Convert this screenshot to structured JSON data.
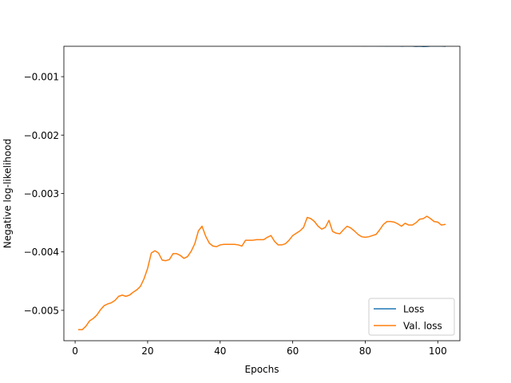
{
  "chart_data": {
    "type": "line",
    "title": "",
    "xlabel": "Epochs",
    "ylabel": "Negative log-likelihood",
    "xlim": [
      -3.1,
      106.1
    ],
    "ylim": [
      -0.00552,
      -0.00048
    ],
    "xticks": [
      0,
      20,
      40,
      60,
      80,
      100
    ],
    "yticks": [
      -0.005,
      -0.004,
      -0.003,
      -0.002,
      -0.001
    ],
    "ytick_labels": [
      "−0.005",
      "−0.004",
      "−0.003",
      "−0.002",
      "−0.001"
    ],
    "legend_position": "lower-right",
    "grid": false,
    "series": [
      {
        "name": "Loss",
        "color": "#1f77b4",
        "x": [
          1,
          2,
          3,
          4,
          5,
          6,
          7,
          8,
          9,
          10,
          11,
          12,
          13,
          14,
          15,
          16,
          17,
          18,
          19,
          20,
          21,
          22,
          23,
          24,
          25,
          26,
          27,
          28,
          29,
          30,
          31,
          32,
          33,
          34,
          35,
          36,
          37,
          38,
          39,
          40,
          41,
          42,
          43,
          44,
          45,
          46,
          47,
          48,
          49,
          50,
          51,
          52,
          53,
          54,
          55,
          56,
          57,
          58,
          59,
          60,
          61,
          62,
          63,
          64,
          65,
          66,
          67,
          68,
          69,
          70,
          71,
          72,
          73,
          74,
          75,
          76,
          77,
          78,
          79,
          80,
          81,
          82,
          83,
          84,
          85,
          86,
          87,
          88,
          89,
          90,
          91,
          92,
          93,
          94,
          95,
          96,
          97,
          98,
          99,
          100,
          101,
          102
        ],
        "y": [
          -0.0004,
          -0.000401,
          -0.000403,
          -0.000405,
          -0.000405,
          -0.000408,
          -0.000416,
          -0.00041,
          -0.000416,
          -0.00042,
          -0.000418,
          -0.000413,
          -0.000414,
          -0.000418,
          -0.000427,
          -0.000427,
          -0.000429,
          -0.000433,
          -0.000432,
          -0.000437,
          -0.000445,
          -0.000433,
          -0.000438,
          -0.000436,
          -0.000445,
          -0.00044,
          -0.000448,
          -0.000446,
          -0.000447,
          -0.000446,
          -0.000452,
          -0.000451,
          -0.000451,
          -0.000453,
          -0.000441,
          -0.000453,
          -0.000449,
          -0.000452,
          -0.000456,
          -0.000457,
          -0.000455,
          -0.000459,
          -0.000457,
          -0.000458,
          -0.000458,
          -0.000461,
          -0.000456,
          -0.000462,
          -0.000461,
          -0.000461,
          -0.000459,
          -0.000465,
          -0.000463,
          -0.000457,
          -0.000464,
          -0.000463,
          -0.000462,
          -0.000465,
          -0.000467,
          -0.000464,
          -0.000465,
          -0.000461,
          -0.000467,
          -0.000466,
          -0.000466,
          -0.000467,
          -0.000466,
          -0.000464,
          -0.000469,
          -0.000455,
          -0.000471,
          -0.000465,
          -0.000468,
          -0.000462,
          -0.000464,
          -0.000469,
          -0.000471,
          -0.000468,
          -0.000472,
          -0.000473,
          -0.000471,
          -0.000472,
          -0.000472,
          -0.000474,
          -0.000473,
          -0.000476,
          -0.000474,
          -0.000475,
          -0.000474,
          -0.000478,
          -0.000476,
          -0.000475,
          -0.000477,
          -0.000481,
          -0.000478,
          -0.000483,
          -0.000481,
          -0.000477,
          -0.000476,
          -0.000475,
          -0.000477,
          -0.000479
        ]
      },
      {
        "name": "Val. loss",
        "color": "#ff7f0e",
        "x": [
          1,
          2,
          3,
          4,
          5,
          6,
          7,
          8,
          9,
          10,
          11,
          12,
          13,
          14,
          15,
          16,
          17,
          18,
          19,
          20,
          21,
          22,
          23,
          24,
          25,
          26,
          27,
          28,
          29,
          30,
          31,
          32,
          33,
          34,
          35,
          36,
          37,
          38,
          39,
          40,
          41,
          42,
          43,
          44,
          45,
          46,
          47,
          48,
          49,
          50,
          51,
          52,
          53,
          54,
          55,
          56,
          57,
          58,
          59,
          60,
          61,
          62,
          63,
          64,
          65,
          66,
          67,
          68,
          69,
          70,
          71,
          72,
          73,
          74,
          75,
          76,
          77,
          78,
          79,
          80,
          81,
          82,
          83,
          84,
          85,
          86,
          87,
          88,
          89,
          90,
          91,
          92,
          93,
          94,
          95,
          96,
          97,
          98,
          99,
          100,
          101,
          102
        ],
        "y": [
          -0.00533,
          -0.00533,
          -0.00527,
          -0.00518,
          -0.00514,
          -0.00508,
          -0.00499,
          -0.00492,
          -0.00489,
          -0.00487,
          -0.00483,
          -0.00476,
          -0.00474,
          -0.00476,
          -0.00474,
          -0.00469,
          -0.00465,
          -0.00459,
          -0.00446,
          -0.00428,
          -0.00402,
          -0.00398,
          -0.00402,
          -0.00414,
          -0.00415,
          -0.00413,
          -0.00403,
          -0.00403,
          -0.00406,
          -0.00411,
          -0.00408,
          -0.00399,
          -0.00386,
          -0.00364,
          -0.00356,
          -0.00373,
          -0.00385,
          -0.0039,
          -0.00391,
          -0.00388,
          -0.00387,
          -0.00387,
          -0.00387,
          -0.00387,
          -0.00388,
          -0.0039,
          -0.0038,
          -0.0038,
          -0.0038,
          -0.00379,
          -0.00379,
          -0.00379,
          -0.00375,
          -0.00372,
          -0.00382,
          -0.00388,
          -0.00388,
          -0.00386,
          -0.0038,
          -0.00372,
          -0.00368,
          -0.00364,
          -0.00358,
          -0.00341,
          -0.00343,
          -0.00348,
          -0.00356,
          -0.00361,
          -0.00358,
          -0.00346,
          -0.00365,
          -0.00368,
          -0.00369,
          -0.00362,
          -0.00356,
          -0.00359,
          -0.00364,
          -0.0037,
          -0.00374,
          -0.00375,
          -0.00374,
          -0.00372,
          -0.0037,
          -0.00362,
          -0.00353,
          -0.00348,
          -0.00348,
          -0.00349,
          -0.00352,
          -0.00356,
          -0.00351,
          -0.00354,
          -0.00354,
          -0.0035,
          -0.00344,
          -0.00343,
          -0.00339,
          -0.00343,
          -0.00348,
          -0.00349,
          -0.00354,
          -0.00353
        ]
      }
    ]
  }
}
